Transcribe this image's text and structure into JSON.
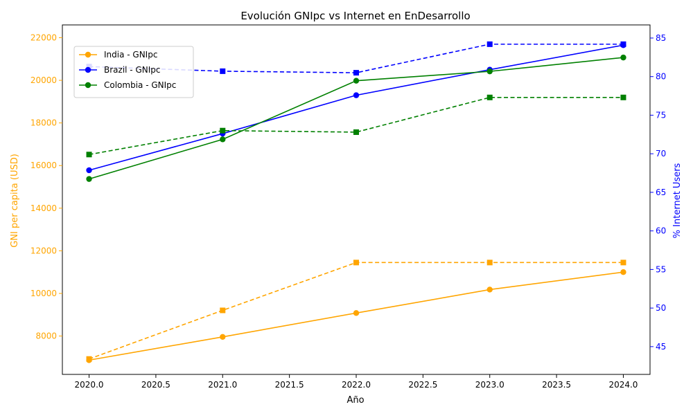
{
  "chart_data": {
    "type": "line",
    "title": "Evolución GNIpc vs Internet en EnDesarrollo",
    "xlabel": "Año",
    "ylabel_left": "GNI per capita (USD)",
    "ylabel_right": "% Internet Users",
    "xlim": [
      2019.8,
      2024.2
    ],
    "ylim_left": [
      6200,
      22600
    ],
    "ylim_right": [
      41.4,
      86.7
    ],
    "x_ticks": [
      "2020.0",
      "2020.5",
      "2021.0",
      "2021.5",
      "2022.0",
      "2022.5",
      "2023.0",
      "2023.5",
      "2024.0"
    ],
    "y_ticks_left": [
      "8000",
      "10000",
      "12000",
      "14000",
      "16000",
      "18000",
      "20000",
      "22000"
    ],
    "y_ticks_right": [
      "45",
      "50",
      "55",
      "60",
      "65",
      "70",
      "75",
      "80",
      "85"
    ],
    "x": [
      2020,
      2021,
      2022,
      2023,
      2024
    ],
    "grid": false,
    "legend_position": "upper-left",
    "colors": {
      "left_axis": "#FFA500",
      "right_axis": "#0000FF",
      "india": "#FFA500",
      "brazil": "#0000FF",
      "colombia": "#008000"
    },
    "series": [
      {
        "name": "India - GNIpc",
        "axis": "left",
        "style": "solid",
        "marker": "circle",
        "color": "#FFA500",
        "values": [
          6870,
          7960,
          9080,
          10180,
          11000
        ]
      },
      {
        "name": "Brazil - GNIpc",
        "axis": "left",
        "style": "solid",
        "marker": "circle",
        "color": "#0000FF",
        "values": [
          15780,
          17500,
          19300,
          20500,
          21650
        ]
      },
      {
        "name": "Colombia - GNIpc",
        "axis": "left",
        "style": "solid",
        "marker": "circle",
        "color": "#008000",
        "values": [
          15370,
          17230,
          19980,
          20420,
          21070
        ]
      },
      {
        "axis": "right",
        "style": "dashed",
        "marker": "square",
        "color": "#FFA500",
        "values": [
          43.4,
          49.7,
          55.9,
          55.9,
          55.9
        ]
      },
      {
        "axis": "right",
        "style": "dashed",
        "marker": "square",
        "color": "#0000FF",
        "values": [
          81.3,
          80.7,
          80.5,
          84.2,
          84.2
        ]
      },
      {
        "axis": "right",
        "style": "dashed",
        "marker": "square",
        "color": "#008000",
        "values": [
          69.9,
          73.0,
          72.8,
          77.3,
          77.3
        ]
      }
    ]
  }
}
